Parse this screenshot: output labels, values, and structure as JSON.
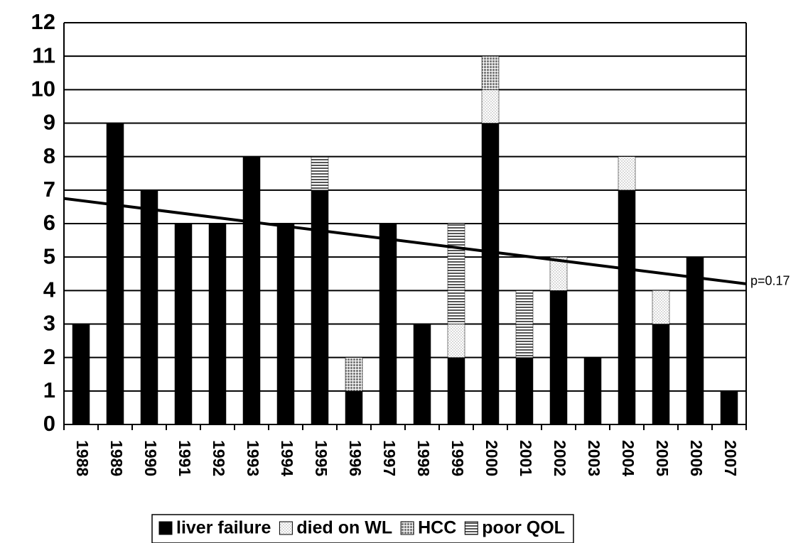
{
  "chart_data": {
    "type": "stacked_bar",
    "categories": [
      "1988",
      "1989",
      "1990",
      "1991",
      "1992",
      "1993",
      "1994",
      "1995",
      "1996",
      "1997",
      "1998",
      "1999",
      "2000",
      "2001",
      "2002",
      "2003",
      "2004",
      "2005",
      "2006",
      "2007"
    ],
    "series": [
      {
        "name": "liver failure",
        "color": "#000000",
        "pattern": "solid",
        "values": [
          3,
          9,
          7,
          6,
          6,
          8,
          6,
          7,
          1,
          6,
          3,
          2,
          9,
          2,
          4,
          2,
          7,
          3,
          5,
          1
        ]
      },
      {
        "name": "died on WL",
        "color": "#d9d9d9",
        "pattern": "dots",
        "values": [
          0,
          0,
          0,
          0,
          0,
          0,
          0,
          0,
          0,
          0,
          0,
          1,
          1,
          0,
          1,
          0,
          1,
          1,
          0,
          0
        ]
      },
      {
        "name": "HCC",
        "color": "#7f7f7f",
        "pattern": "grid",
        "values": [
          0,
          0,
          0,
          0,
          0,
          0,
          0,
          0,
          1,
          0,
          0,
          0,
          1,
          0,
          0,
          0,
          0,
          0,
          0,
          0
        ]
      },
      {
        "name": "poor QOL",
        "color": "#555555",
        "pattern": "hlines",
        "values": [
          0,
          0,
          0,
          0,
          0,
          0,
          0,
          1,
          0,
          0,
          0,
          3,
          0,
          2,
          0,
          0,
          0,
          0,
          0,
          0
        ]
      }
    ],
    "trend": {
      "label": "p=0.17",
      "values": [
        6.75,
        4.2
      ]
    },
    "ylim": [
      0,
      12
    ],
    "yticks": [
      0,
      1,
      2,
      3,
      4,
      5,
      6,
      7,
      8,
      9,
      10,
      11,
      12
    ],
    "grid": true
  }
}
